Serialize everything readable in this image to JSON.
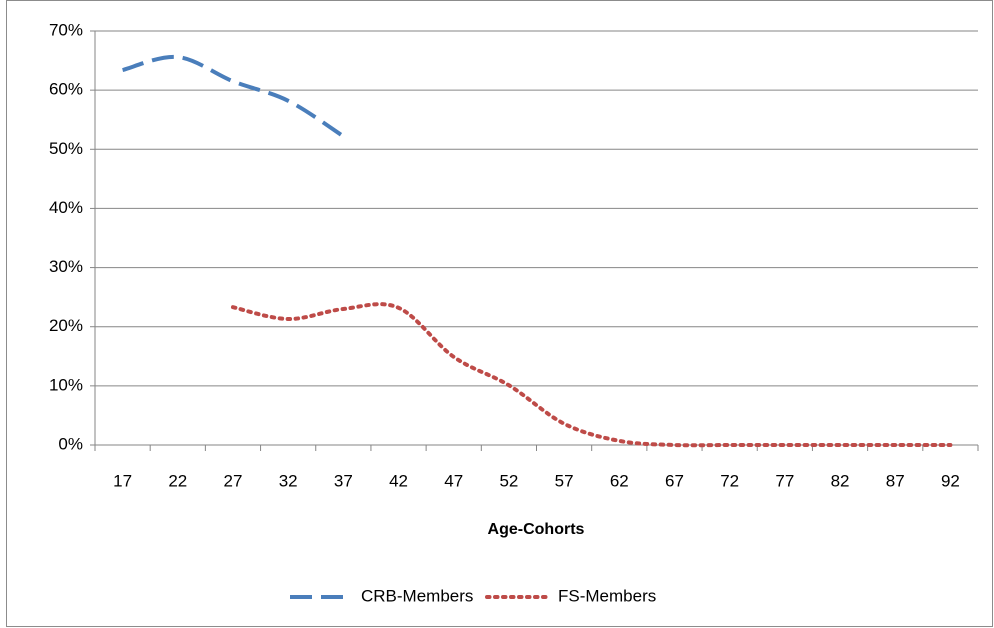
{
  "chart_data": {
    "type": "line",
    "xlabel": "Age-Cohorts",
    "categories": [
      "17",
      "22",
      "27",
      "32",
      "37",
      "42",
      "47",
      "52",
      "57",
      "62",
      "67",
      "72",
      "77",
      "82",
      "87",
      "92"
    ],
    "series": [
      {
        "name": "CRB-Members",
        "color": "#4a7ebb",
        "dash": "dashed",
        "values": [
          63.4,
          65.6,
          61.5,
          58.2,
          52.2,
          null,
          null,
          null,
          null,
          null,
          null,
          null,
          null,
          null,
          null,
          null
        ]
      },
      {
        "name": "FS-Members",
        "color": "#be4b48",
        "dash": "dotted",
        "values": [
          null,
          null,
          23.3,
          21.3,
          23.0,
          23.2,
          14.9,
          10.1,
          3.6,
          0.7,
          0,
          0,
          0,
          0,
          0,
          0
        ]
      }
    ],
    "smooth": true,
    "ylim": [
      0,
      70
    ],
    "yticks": [
      {
        "value": 0,
        "label": "0%"
      },
      {
        "value": 10,
        "label": "10%"
      },
      {
        "value": 20,
        "label": "20%"
      },
      {
        "value": 30,
        "label": "30%"
      },
      {
        "value": 40,
        "label": "40%"
      },
      {
        "value": 50,
        "label": "50%"
      },
      {
        "value": 60,
        "label": "60%"
      },
      {
        "value": 70,
        "label": "70%"
      }
    ],
    "grid": true,
    "legend": "bottom"
  }
}
